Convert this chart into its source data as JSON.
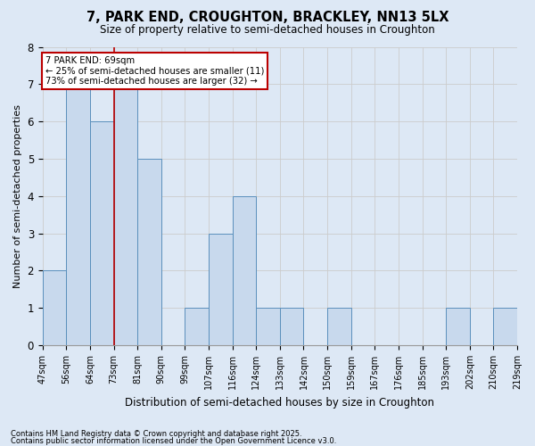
{
  "title1": "7, PARK END, CROUGHTON, BRACKLEY, NN13 5LX",
  "title2": "Size of property relative to semi-detached houses in Croughton",
  "xlabel": "Distribution of semi-detached houses by size in Croughton",
  "ylabel": "Number of semi-detached properties",
  "bins": [
    "47sqm",
    "56sqm",
    "64sqm",
    "73sqm",
    "81sqm",
    "90sqm",
    "99sqm",
    "107sqm",
    "116sqm",
    "124sqm",
    "133sqm",
    "142sqm",
    "150sqm",
    "159sqm",
    "167sqm",
    "176sqm",
    "185sqm",
    "193sqm",
    "202sqm",
    "210sqm",
    "219sqm"
  ],
  "counts": [
    2,
    7,
    6,
    7,
    5,
    0,
    1,
    3,
    4,
    1,
    1,
    0,
    1,
    0,
    0,
    0,
    0,
    1,
    0,
    1,
    0
  ],
  "bar_color": "#c8d9ed",
  "bar_edge_color": "#5a8fbc",
  "annotation_title": "7 PARK END: 69sqm",
  "annotation_line1": "← 25% of semi-detached houses are smaller (11)",
  "annotation_line2": "73% of semi-detached houses are larger (32) →",
  "annotation_box_facecolor": "#ffffff",
  "annotation_box_edgecolor": "#bb0000",
  "subject_line_color": "#bb0000",
  "ylim": [
    0,
    8
  ],
  "yticks": [
    0,
    1,
    2,
    3,
    4,
    5,
    6,
    7,
    8
  ],
  "grid_color": "#cccccc",
  "footer1": "Contains HM Land Registry data © Crown copyright and database right 2025.",
  "footer2": "Contains public sector information licensed under the Open Government Licence v3.0.",
  "background_color": "#dde8f5",
  "plot_bg_color": "#dde8f5"
}
